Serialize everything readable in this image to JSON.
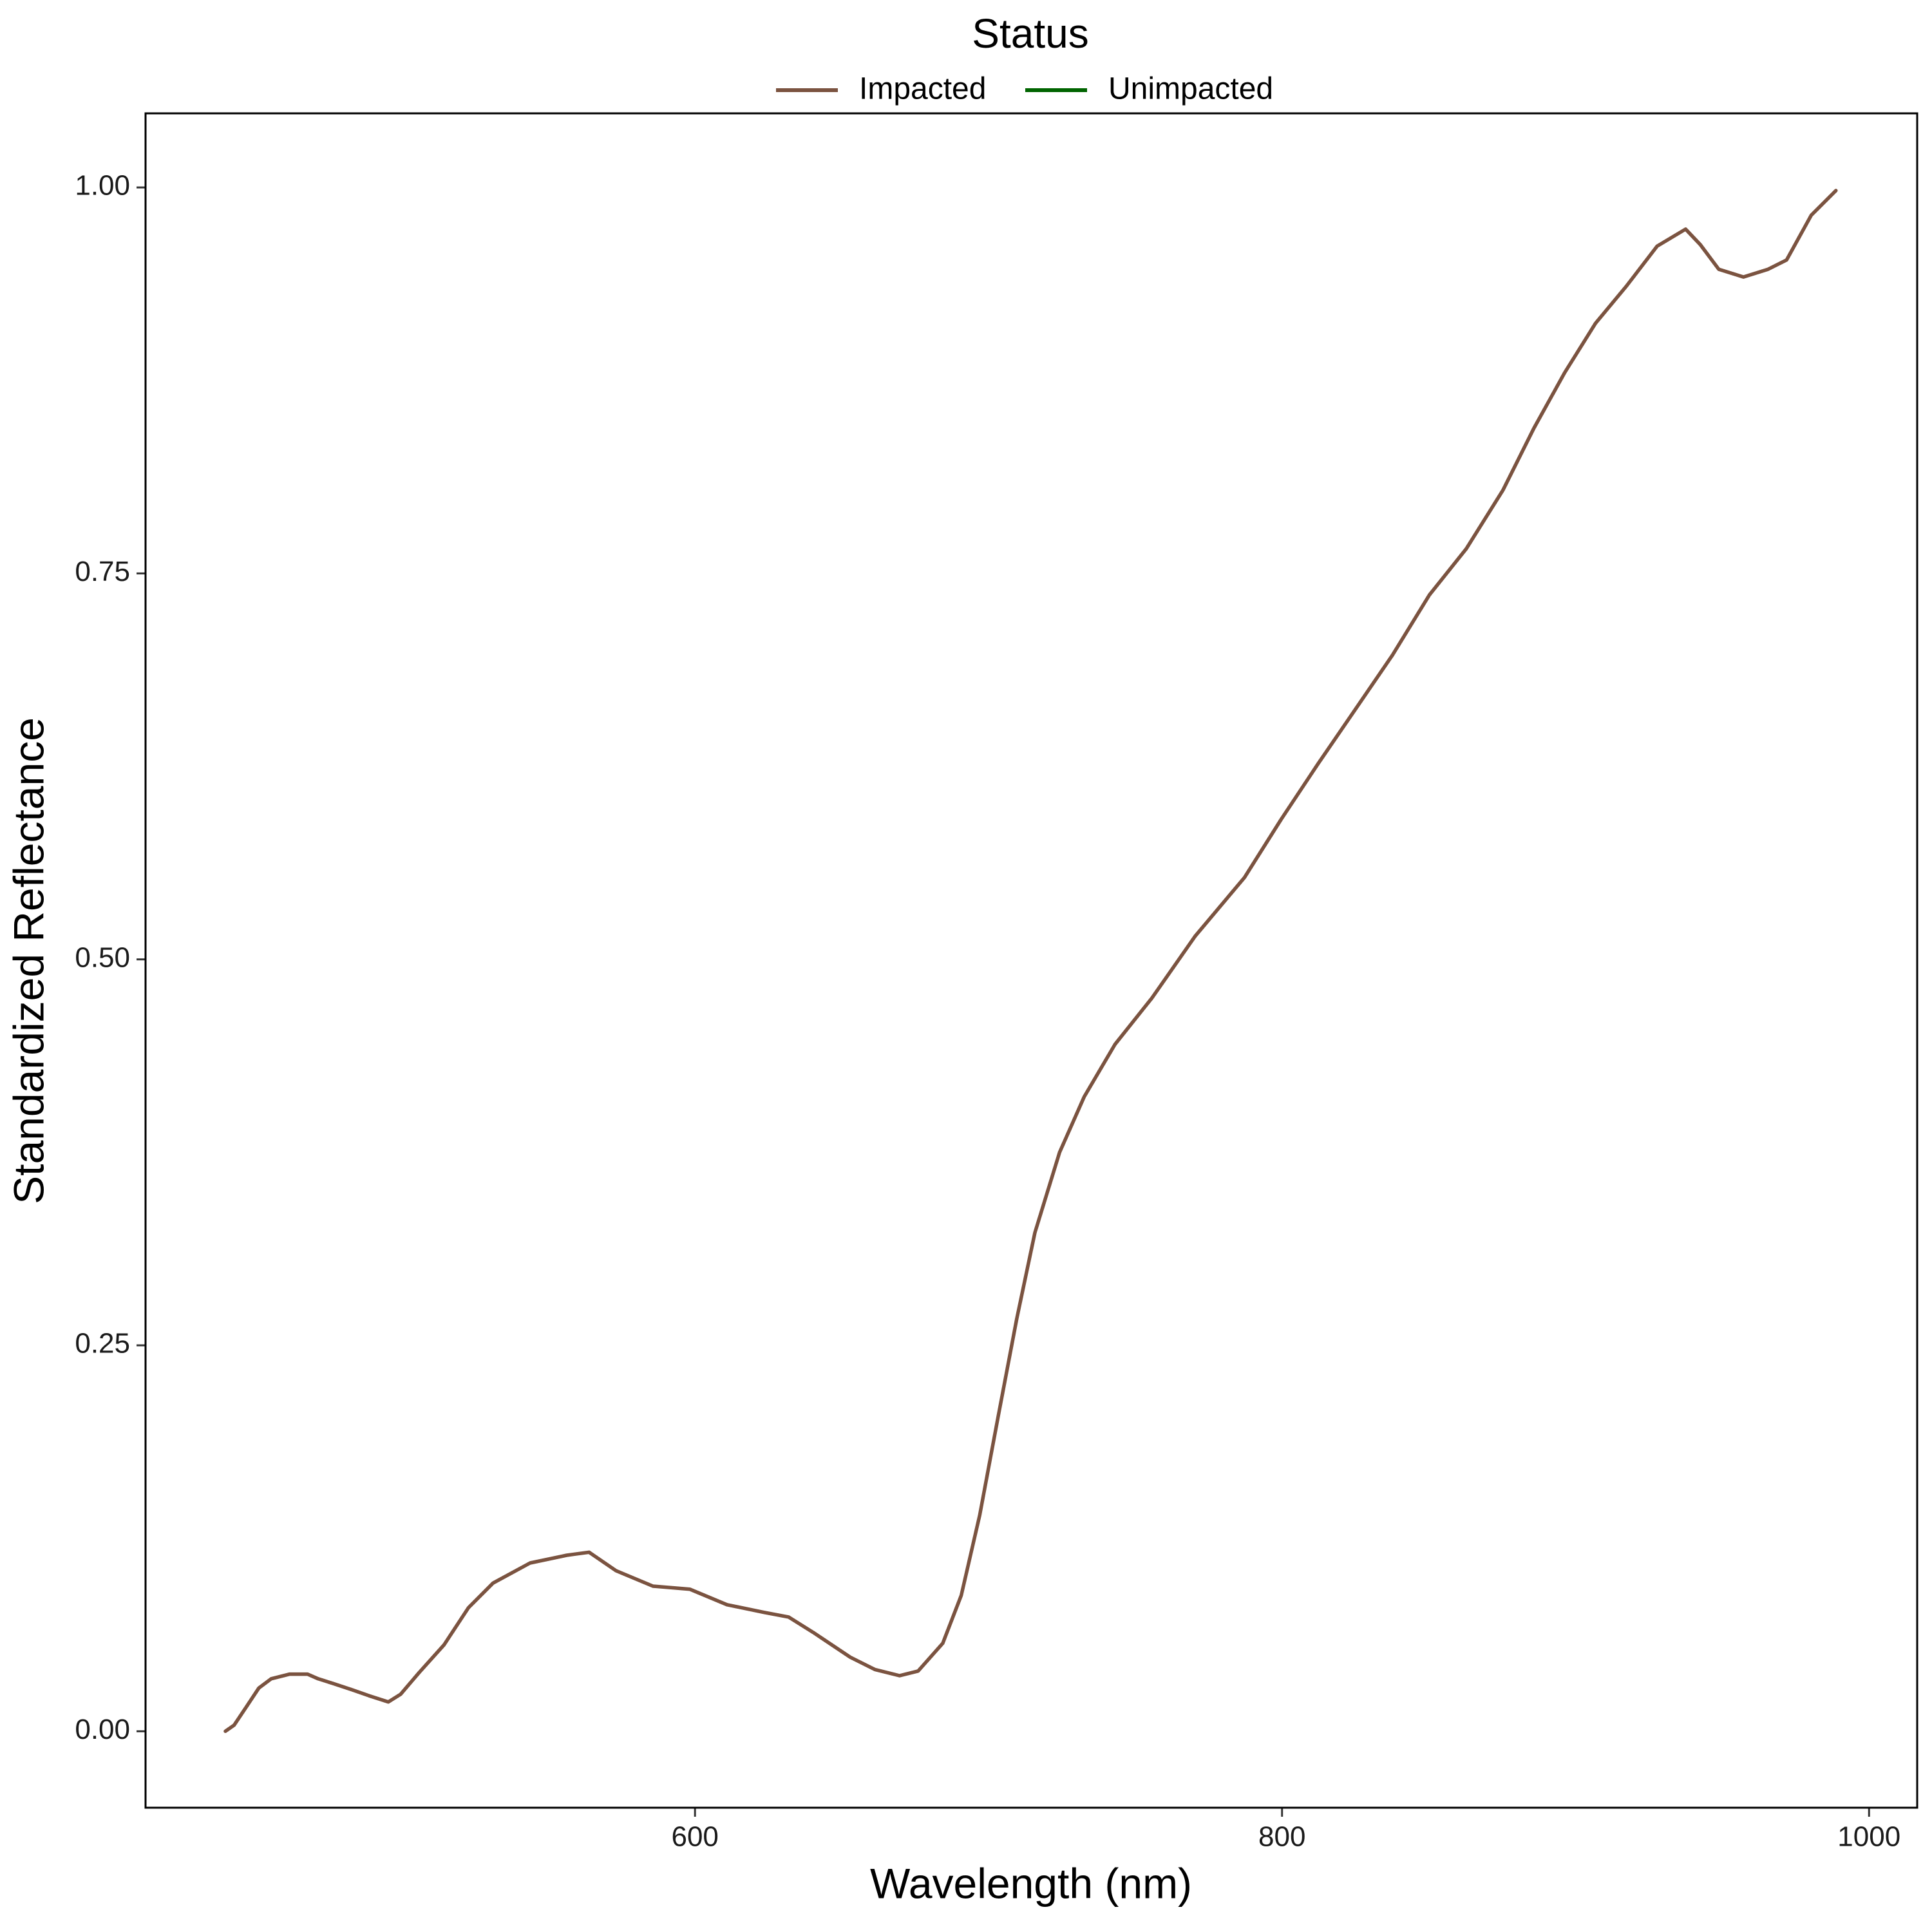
{
  "chart_data": {
    "type": "line",
    "xlabel": "Wavelength (nm)",
    "ylabel": "Standardized Reflectance",
    "legend_title": "Status",
    "legend_position": "top",
    "xlim": [
      412.8,
      1016.4
    ],
    "xticks": [
      600,
      800,
      1000
    ],
    "ylim": [
      -0.0495,
      1.048
    ],
    "yticks": [
      {
        "value": 0,
        "label": "0.00"
      },
      {
        "value": 0.25,
        "label": "0.25"
      },
      {
        "value": 0.5,
        "label": "0.50"
      },
      {
        "value": 0.75,
        "label": "0.75"
      },
      {
        "value": 1,
        "label": "1.00"
      }
    ],
    "grid": false,
    "x": [
      440,
      443,
      447.2,
      451.4,
      455.6,
      461.9,
      468,
      471.6,
      476.6,
      483,
      489,
      495.5,
      499.7,
      506,
      514.5,
      522.8,
      531.2,
      543.8,
      556.3,
      563.9,
      573.1,
      585.7,
      598.3,
      610.9,
      623.5,
      631.9,
      640.3,
      652.9,
      661.3,
      669.7,
      676,
      684.4,
      690.7,
      697,
      703.3,
      709.6,
      715.8,
      724.2,
      732.6,
      743.1,
      755.7,
      770.4,
      787.2,
      799.8,
      812.4,
      825,
      837.6,
      850.2,
      862.8,
      875.3,
      885.8,
      896.3,
      906.8,
      917.3,
      927.8,
      937.5,
      942.5,
      948.8,
      957.2,
      965.6,
      971.9,
      980.3,
      988.7
    ],
    "series": [
      {
        "name": "Impacted",
        "color": "#7b5340",
        "values": [
          0,
          0.004,
          0.016,
          0.028,
          0.034,
          0.037,
          0.037,
          0.034,
          0.031,
          0.027,
          0.023,
          0.019,
          0.024,
          0.038,
          0.056,
          0.08,
          0.096,
          0.109,
          0.114,
          0.116,
          0.104,
          0.094,
          0.092,
          0.082,
          0.077,
          0.074,
          0.064,
          0.048,
          0.04,
          0.036,
          0.039,
          0.057,
          0.088,
          0.14,
          0.204,
          0.267,
          0.323,
          0.375,
          0.411,
          0.445,
          0.475,
          0.515,
          0.553,
          0.591,
          0.627,
          0.662,
          0.697,
          0.736,
          0.766,
          0.804,
          0.844,
          0.88,
          0.912,
          0.936,
          0.962,
          0.973,
          0.963,
          0.947,
          0.942,
          0.947,
          0.953,
          0.982,
          0.998
        ]
      },
      {
        "name": "Unimpacted",
        "color": "#006400",
        "values": [
          null,
          null,
          null,
          null,
          null,
          null,
          null,
          null,
          null,
          null,
          null,
          null,
          null,
          null,
          null,
          null,
          null,
          null,
          null,
          null,
          null,
          null,
          null,
          null,
          null,
          null,
          null,
          null,
          null,
          null,
          null,
          null,
          null,
          null,
          null,
          null,
          null,
          null,
          null,
          null,
          null,
          null,
          null,
          null,
          null,
          null,
          null,
          null,
          null,
          null,
          null,
          null,
          null,
          null,
          null,
          null,
          null,
          null,
          null,
          null,
          null,
          null,
          null
        ]
      }
    ]
  }
}
